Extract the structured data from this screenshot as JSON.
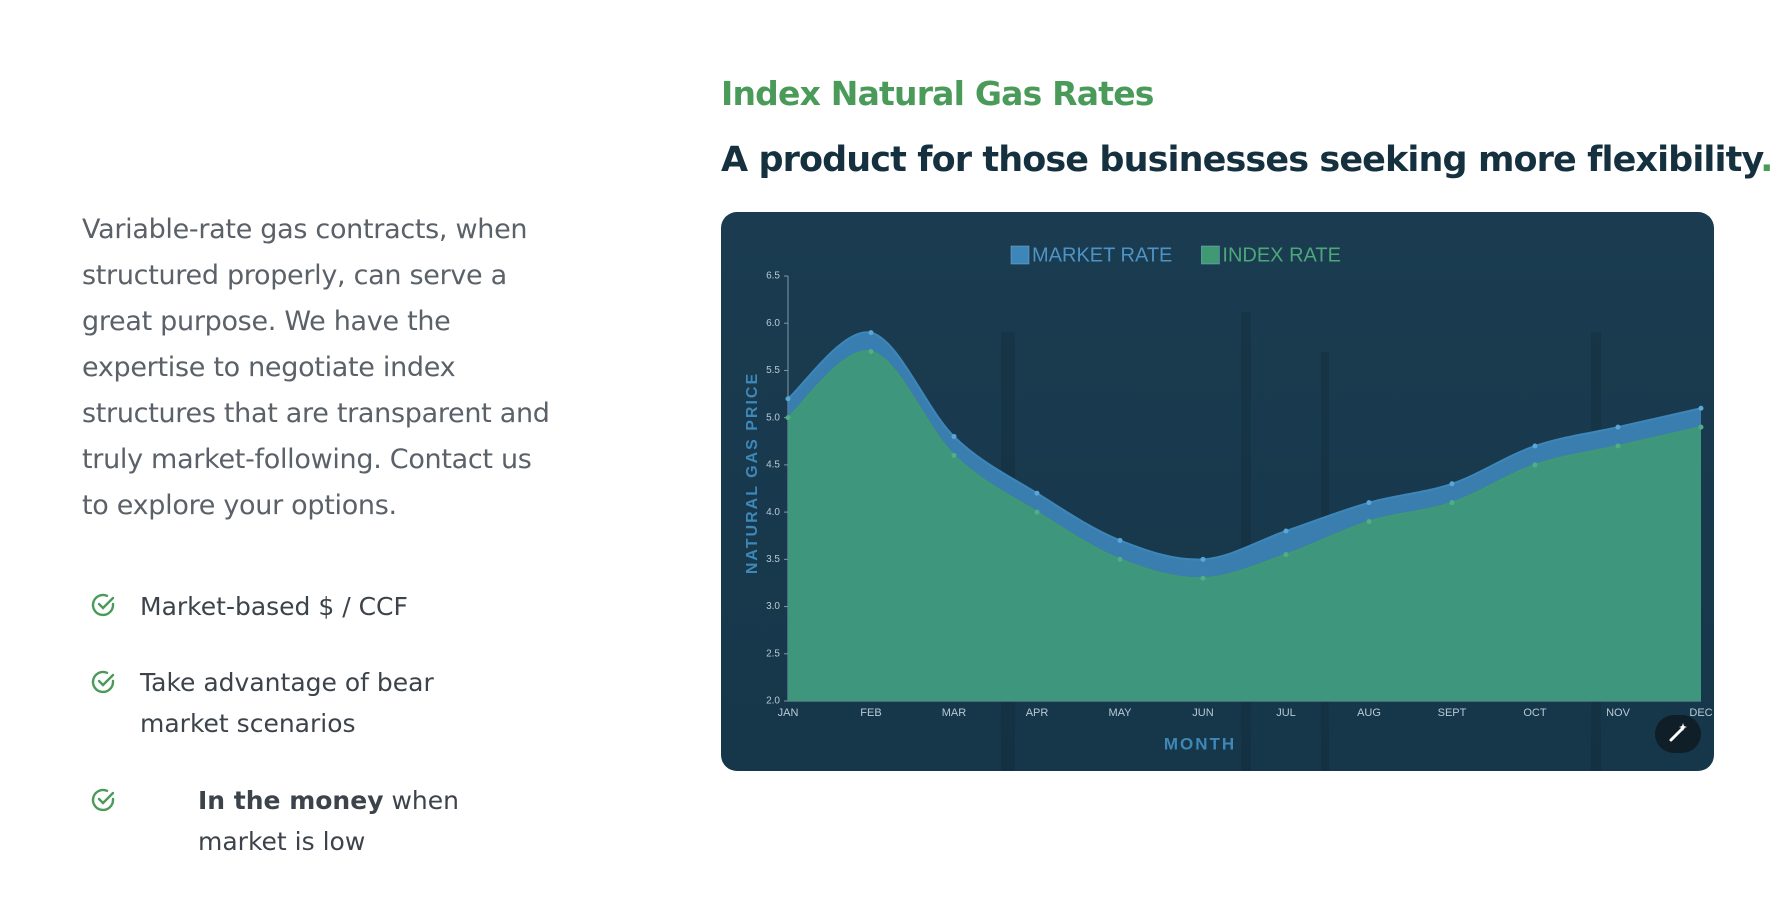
{
  "intro": "Variable-rate gas contracts, when structured properly, can serve a great purpose. We have the expertise to negotiate index structures that are transparent and truly market-following. Contact us to explore your options.",
  "features": [
    {
      "text": "Market-based $ / CCF"
    },
    {
      "text": "Take advantage of bear market scenarios"
    },
    {
      "bold": "In the money",
      "text": " when market is low"
    }
  ],
  "eyebrow": "Index Natural Gas Rates",
  "heading": {
    "text": "A product for those businesses seeking more flexibility",
    "accent": "."
  },
  "chart_data": {
    "type": "area",
    "x_label": "MONTH",
    "y_label": "NATURAL GAS PRICE",
    "categories": [
      "JAN",
      "FEB",
      "MAR",
      "APR",
      "MAY",
      "JUN",
      "JUL",
      "AUG",
      "SEPT",
      "OCT",
      "NOV",
      "DEC"
    ],
    "series": [
      {
        "name": "MARKET RATE",
        "color": "#3d86ba",
        "values": [
          5.2,
          5.9,
          4.8,
          4.2,
          3.7,
          3.5,
          3.8,
          4.1,
          4.3,
          4.7,
          4.9,
          5.1
        ]
      },
      {
        "name": "INDEX RATE",
        "color": "#3f9a73",
        "values": [
          5.0,
          5.7,
          4.6,
          4.0,
          3.5,
          3.3,
          3.55,
          3.9,
          4.1,
          4.5,
          4.7,
          4.9
        ]
      }
    ],
    "ylim": [
      2,
      6.5
    ],
    "yticks": [
      {
        "value": 2,
        "label": "2.0"
      },
      2.5,
      {
        "value": 3,
        "label": "3.0"
      },
      3.5,
      {
        "value": 4,
        "label": "4.0"
      },
      4.5,
      {
        "value": 5,
        "label": "5.0"
      },
      5.5,
      {
        "value": 6,
        "label": "6.0"
      },
      6.5
    ]
  }
}
